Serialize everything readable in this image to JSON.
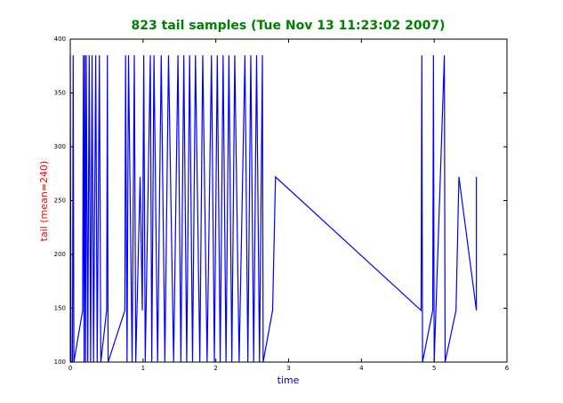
{
  "chart_data": {
    "type": "line",
    "title": "823 tail samples (Tue Nov 13 11:23:02 2007)",
    "xlabel": "time",
    "ylabel": "tail (mean=240)",
    "title_color": "#008000",
    "xlabel_color": "#0000cc",
    "ylabel_color": "#ff0000",
    "color": "#0000ff",
    "x": [
      0.0,
      0.01,
      0.03,
      0.04,
      0.05,
      0.17,
      0.18,
      0.19,
      0.2,
      0.21,
      0.22,
      0.24,
      0.26,
      0.28,
      0.3,
      0.32,
      0.35,
      0.37,
      0.4,
      0.42,
      0.5,
      0.51,
      0.52,
      0.75,
      0.76,
      0.78,
      0.8,
      0.85,
      0.88,
      0.9,
      0.96,
      0.99,
      1.01,
      1.03,
      1.1,
      1.12,
      1.15,
      1.2,
      1.25,
      1.3,
      1.35,
      1.42,
      1.48,
      1.52,
      1.56,
      1.6,
      1.64,
      1.68,
      1.72,
      1.78,
      1.82,
      1.88,
      1.94,
      1.98,
      2.02,
      2.06,
      2.1,
      2.14,
      2.18,
      2.22,
      2.26,
      2.32,
      2.4,
      2.44,
      2.48,
      2.52,
      2.56,
      2.6,
      2.64,
      2.65,
      2.78,
      2.82,
      4.82,
      4.83,
      4.84,
      4.98,
      4.99,
      5.0,
      5.14,
      5.15,
      5.3,
      5.34,
      5.58,
      5.58
    ],
    "values": [
      385,
      100,
      100,
      385,
      100,
      148,
      385,
      100,
      385,
      100,
      385,
      100,
      385,
      100,
      385,
      100,
      385,
      100,
      385,
      100,
      148,
      385,
      100,
      148,
      385,
      100,
      385,
      100,
      385,
      100,
      272,
      148,
      385,
      100,
      385,
      100,
      385,
      100,
      385,
      100,
      385,
      100,
      385,
      100,
      385,
      100,
      385,
      100,
      385,
      100,
      385,
      100,
      385,
      100,
      385,
      100,
      385,
      100,
      385,
      100,
      385,
      100,
      385,
      100,
      385,
      100,
      385,
      100,
      385,
      100,
      148,
      272,
      148,
      385,
      100,
      148,
      385,
      100,
      385,
      100,
      148,
      272,
      148,
      272
    ],
    "xlim": [
      0,
      6
    ],
    "ylim": [
      100,
      400
    ],
    "xticks": [
      0,
      1,
      2,
      3,
      4,
      5,
      6
    ],
    "yticks": [
      100,
      150,
      200,
      250,
      300,
      350,
      400
    ],
    "grid": false
  }
}
